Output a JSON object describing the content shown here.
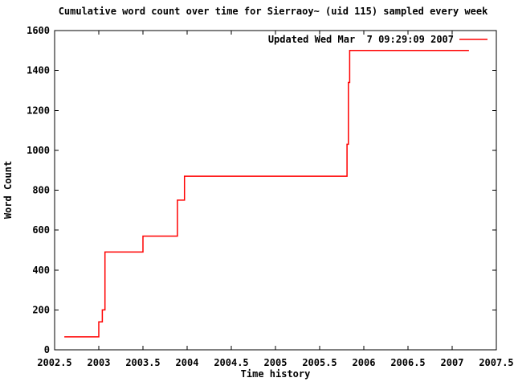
{
  "page": {
    "background": "#ffffff"
  },
  "colors": {
    "axis": "#000000",
    "text": "#000000",
    "series_red": "#ff0000",
    "background": "#ffffff"
  },
  "chart_data": {
    "type": "line",
    "line_style": "steps-post",
    "title": "Cumulative word count over time for Sierraoy~ (uid 115) sampled every week",
    "xlabel": "Time history",
    "ylabel": "Word Count",
    "xlim": [
      2002.5,
      2007.5
    ],
    "ylim": [
      0,
      1600
    ],
    "xticks": [
      2002.5,
      2003,
      2003.5,
      2004,
      2004.5,
      2005,
      2005.5,
      2006,
      2006.5,
      2007,
      2007.5
    ],
    "yticks": [
      0,
      200,
      400,
      600,
      800,
      1000,
      1200,
      1400,
      1600
    ],
    "grid": false,
    "tick_style": "inward-mirrored",
    "legend": {
      "position": "top-right-inside",
      "entries": [
        {
          "label": "Updated Wed Mar  7 09:29:09 2007",
          "color": "#ff0000"
        }
      ]
    },
    "series": [
      {
        "name": "Updated Wed Mar  7 09:29:09 2007",
        "color": "#ff0000",
        "style": "steps",
        "points": [
          [
            2002.61,
            65
          ],
          [
            2003.0,
            140
          ],
          [
            2003.04,
            200
          ],
          [
            2003.07,
            490
          ],
          [
            2003.5,
            570
          ],
          [
            2003.89,
            750
          ],
          [
            2003.97,
            870
          ],
          [
            2005.81,
            1030
          ],
          [
            2005.825,
            1340
          ],
          [
            2005.84,
            1500
          ],
          [
            2007.19,
            1500
          ]
        ]
      }
    ]
  }
}
